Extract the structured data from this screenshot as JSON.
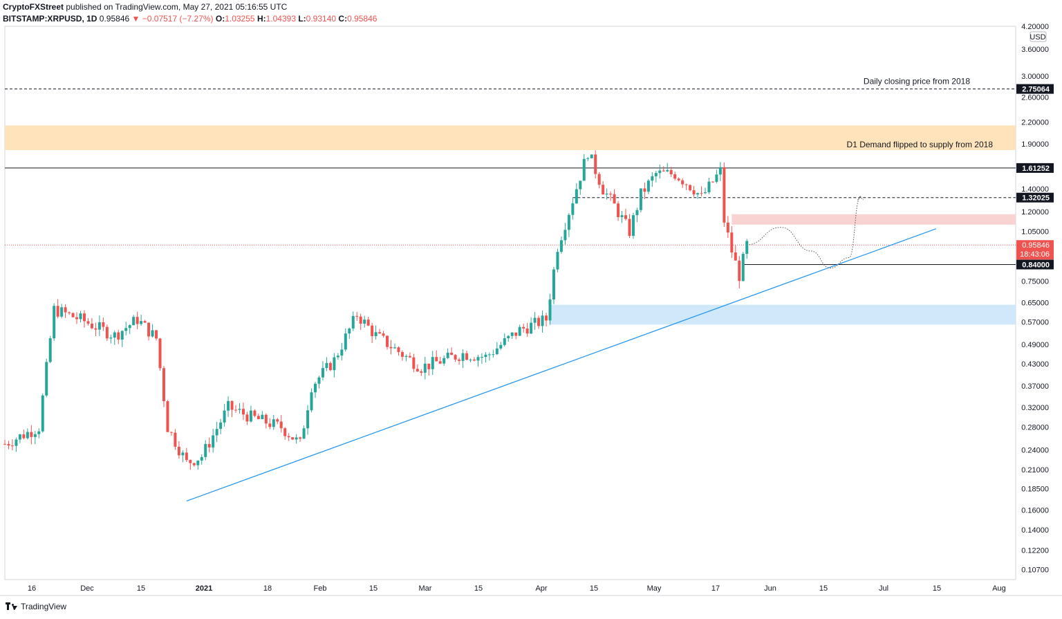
{
  "header": {
    "publisher": "CryptoFXStreet",
    "published_text": "published on TradingView.com, May 27, 2021 05:16:55 UTC",
    "symbol": "BITSTAMP:XRPUSD, 1D",
    "last": "0.95846",
    "change": "−0.07517 (−7.27%)",
    "open_label": "O:",
    "open": "1.03255",
    "high_label": "H:",
    "high": "1.04393",
    "low_label": "L:",
    "low": "0.93140",
    "close_label": "C:",
    "close": "0.95846"
  },
  "footer": {
    "brand": "TradingView"
  },
  "colors": {
    "up": "#26a69a",
    "down": "#ef5350",
    "trend": "#2196f3",
    "supply_zone": "#ffe0b2",
    "red_zone": "#f8cdcd",
    "blue_zone": "#cce6fb"
  },
  "chart_data": {
    "type": "candlestick",
    "title": "",
    "y_scale": "log",
    "y_unit": "USD",
    "ylim": [
      0.1,
      4.2
    ],
    "y_ticks": [
      "4.20000",
      "3.60000",
      "3.00000",
      "2.60000",
      "2.20000",
      "1.90000",
      "1.40000",
      "1.20000",
      "1.05000",
      "0.75000",
      "0.65000",
      "0.57000",
      "0.49000",
      "0.43000",
      "0.37000",
      "0.32000",
      "0.28000",
      "0.24000",
      "0.21000",
      "0.18500",
      "0.16000",
      "0.14000",
      "0.12200",
      "0.10700"
    ],
    "x_ticks": [
      "16",
      "Dec",
      "15",
      "2021",
      "18",
      "Feb",
      "15",
      "Mar",
      "15",
      "Apr",
      "15",
      "May",
      "17",
      "Jun",
      "15",
      "Jul",
      "15",
      "Aug"
    ],
    "x_range": [
      "2020-11-11",
      "2021-08-05"
    ],
    "levels": [
      {
        "label": "2.75064",
        "value": 2.75064,
        "style": "dashed",
        "note": "Daily closing price from 2018"
      },
      {
        "label": "1.61252",
        "value": 1.61252,
        "style": "solid"
      },
      {
        "label": "1.32025",
        "value": 1.32025,
        "style": "dashed"
      },
      {
        "label": "0.84000",
        "value": 0.84,
        "style": "solid"
      }
    ],
    "current_price": {
      "label": "0.95846",
      "countdown": "18:43:06",
      "value": 0.95846
    },
    "zones": [
      {
        "name": "supply",
        "note": "D1 Demand flipped to supply from 2018",
        "low": 1.82,
        "high": 2.15
      },
      {
        "name": "resistance",
        "low": 1.1,
        "high": 1.18
      },
      {
        "name": "demand",
        "low": 0.56,
        "high": 0.64
      }
    ],
    "trendline": {
      "start": [
        "2020-12-29",
        0.17
      ],
      "end": [
        "2021-07-15",
        1.07
      ]
    },
    "projection": [
      [
        "2021-05-26",
        0.96
      ],
      [
        "2021-06-04",
        1.08
      ],
      [
        "2021-06-12",
        0.92
      ],
      [
        "2021-06-17",
        0.82
      ],
      [
        "2021-06-22",
        0.88
      ],
      [
        "2021-06-25",
        1.33
      ]
    ],
    "anchors": [
      [
        "2020-11-11",
        0.25
      ],
      [
        "2020-11-20",
        0.28
      ],
      [
        "2020-11-24",
        0.62
      ],
      [
        "2020-12-01",
        0.58
      ],
      [
        "2020-12-10",
        0.52
      ],
      [
        "2020-12-16",
        0.58
      ],
      [
        "2020-12-21",
        0.51
      ],
      [
        "2020-12-24",
        0.28
      ],
      [
        "2020-12-29",
        0.22
      ],
      [
        "2021-01-02",
        0.23
      ],
      [
        "2021-01-09",
        0.32
      ],
      [
        "2021-01-15",
        0.3
      ],
      [
        "2021-01-23",
        0.28
      ],
      [
        "2021-01-28",
        0.25
      ],
      [
        "2021-01-31",
        0.37
      ],
      [
        "2021-02-06",
        0.44
      ],
      [
        "2021-02-12",
        0.6
      ],
      [
        "2021-02-17",
        0.52
      ],
      [
        "2021-02-25",
        0.45
      ],
      [
        "2021-03-01",
        0.42
      ],
      [
        "2021-03-12",
        0.46
      ],
      [
        "2021-03-18",
        0.45
      ],
      [
        "2021-03-27",
        0.54
      ],
      [
        "2021-04-03",
        0.58
      ],
      [
        "2021-04-06",
        0.95
      ],
      [
        "2021-04-10",
        1.3
      ],
      [
        "2021-04-14",
        1.8
      ],
      [
        "2021-04-18",
        1.4
      ],
      [
        "2021-04-21",
        1.25
      ],
      [
        "2021-04-25",
        1.05
      ],
      [
        "2021-04-28",
        1.35
      ],
      [
        "2021-05-02",
        1.55
      ],
      [
        "2021-05-07",
        1.55
      ],
      [
        "2021-05-12",
        1.4
      ],
      [
        "2021-05-14",
        1.32
      ],
      [
        "2021-05-19",
        1.58
      ],
      [
        "2021-05-20",
        1.13
      ],
      [
        "2021-05-22",
        0.92
      ],
      [
        "2021-05-24",
        0.78
      ],
      [
        "2021-05-26",
        0.96
      ]
    ]
  }
}
